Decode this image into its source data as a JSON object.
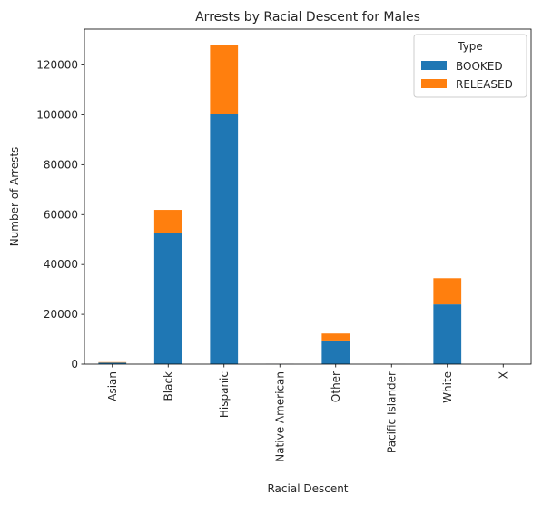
{
  "chart_data": {
    "type": "bar",
    "stacked": true,
    "title": "Arrests by Racial Descent for Males",
    "xlabel": "Racial Descent",
    "ylabel": "Number of Arrests",
    "categories": [
      "Asian",
      "Black",
      "Hispanic",
      "Native American",
      "Other",
      "Pacific Islander",
      "White",
      "X"
    ],
    "series": [
      {
        "name": "BOOKED",
        "color": "#1f77b4",
        "values": [
          600,
          52700,
          100300,
          50,
          9500,
          20,
          24000,
          10
        ]
      },
      {
        "name": "RELEASED",
        "color": "#ff7f0e",
        "values": [
          200,
          9200,
          27800,
          20,
          2800,
          10,
          10500,
          5
        ]
      }
    ],
    "ylim": [
      0,
      134400
    ],
    "yticks": [
      0,
      20000,
      40000,
      60000,
      80000,
      100000,
      120000
    ],
    "ytick_labels": [
      "0",
      "20000",
      "40000",
      "60000",
      "80000",
      "100000",
      "120000"
    ],
    "legend": {
      "title": "Type",
      "position": "top-right"
    },
    "grid": false
  }
}
